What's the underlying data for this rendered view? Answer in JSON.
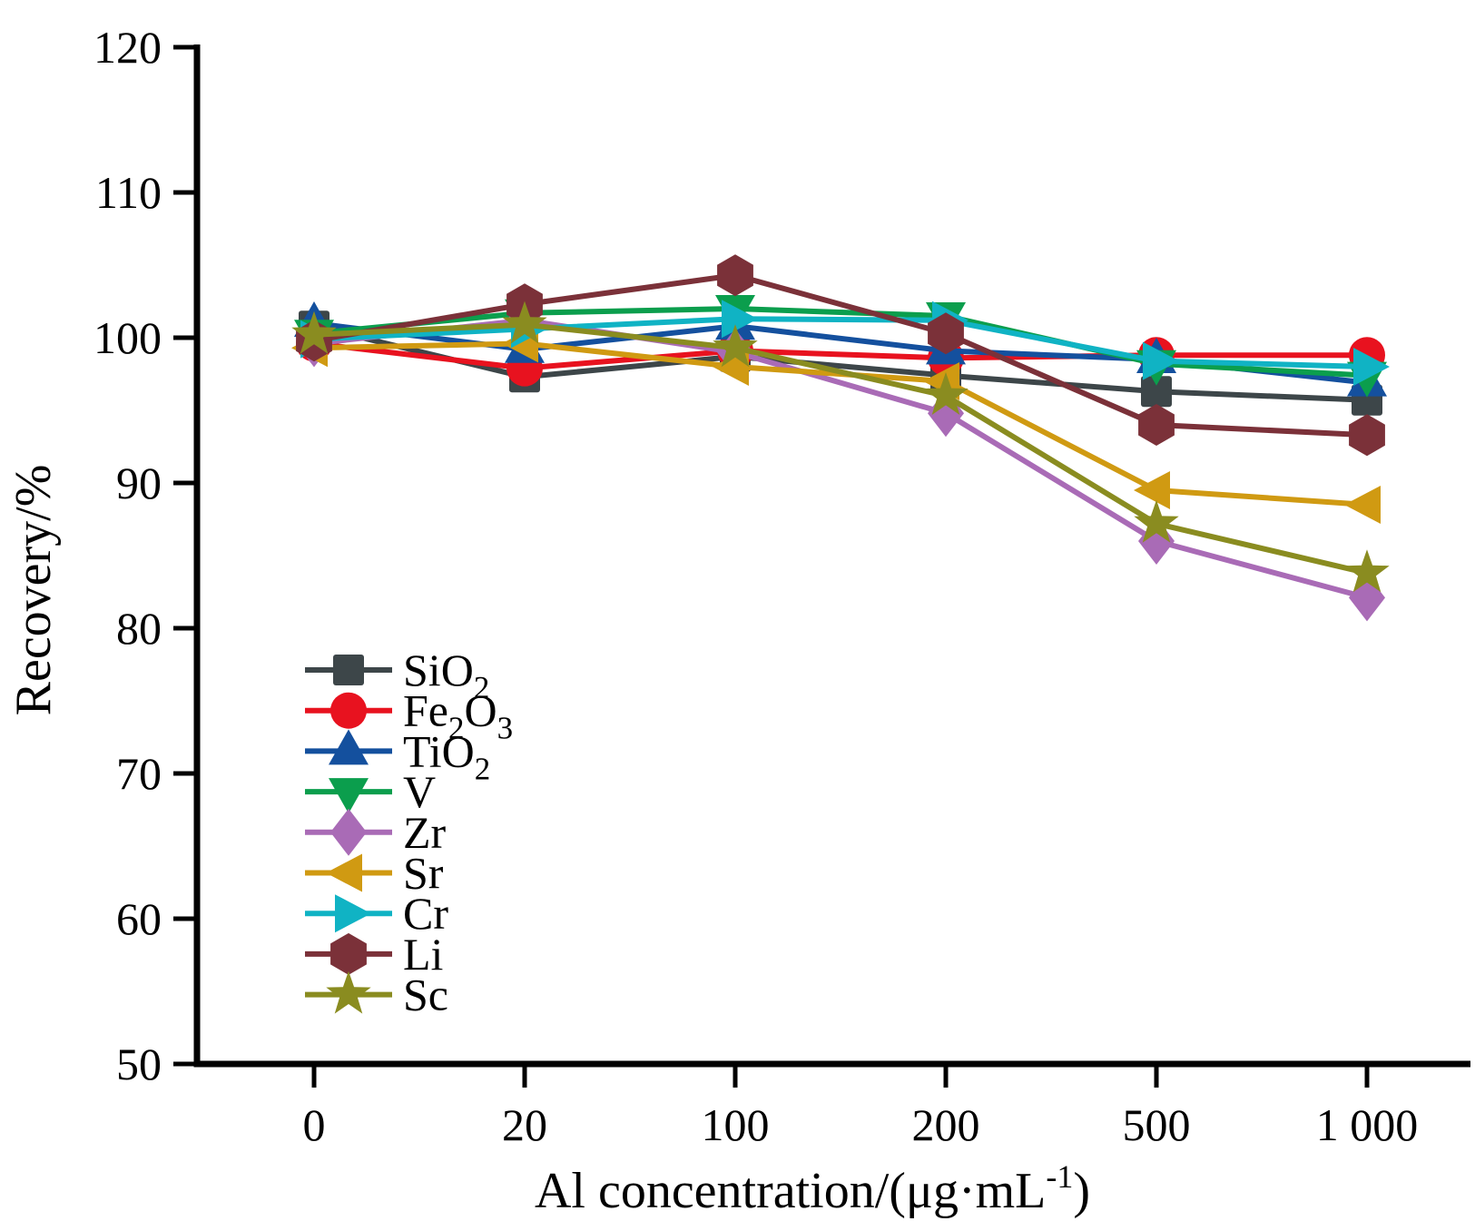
{
  "figure": {
    "background_color": "#ffffff",
    "axis_color": "#000000"
  },
  "chart_data": {
    "type": "line",
    "title": "",
    "xlabel_plain": "Al concentration/(μg·mL-1)",
    "xlabel_segments": [
      {
        "t": "Al concentration/(μg·mL"
      },
      {
        "t": "-1",
        "sup": true
      },
      {
        "t": ")"
      }
    ],
    "ylabel": "Recovery/%",
    "categories": [
      "0",
      "20",
      "100",
      "200",
      "500",
      "1 000"
    ],
    "x_values": [
      0,
      20,
      100,
      200,
      500,
      1000
    ],
    "yticks": [
      50,
      60,
      70,
      80,
      90,
      100,
      110,
      120
    ],
    "ylim": [
      50,
      120
    ],
    "grid": false,
    "legend_position": "inside-lower-left",
    "series": [
      {
        "plain": "SiO2",
        "name_segments": [
          {
            "t": "SiO"
          },
          {
            "t": "2",
            "sub": true
          }
        ],
        "marker": "square",
        "color": "#3d4649",
        "values": [
          100.8,
          97.3,
          98.7,
          97.4,
          96.3,
          95.7
        ]
      },
      {
        "plain": "Fe2O3",
        "name_segments": [
          {
            "t": "Fe"
          },
          {
            "t": "2",
            "sub": true
          },
          {
            "t": "O"
          },
          {
            "t": "3",
            "sub": true
          }
        ],
        "marker": "circle",
        "color": "#e8121f",
        "values": [
          99.6,
          97.9,
          99.1,
          98.6,
          98.8,
          98.8
        ]
      },
      {
        "plain": "TiO2",
        "name_segments": [
          {
            "t": "TiO"
          },
          {
            "t": "2",
            "sub": true
          }
        ],
        "marker": "triangle-up",
        "color": "#14509e",
        "values": [
          101.0,
          99.2,
          100.8,
          99.1,
          98.5,
          96.9
        ]
      },
      {
        "plain": "V",
        "name_segments": [
          {
            "t": "V"
          }
        ],
        "marker": "triangle-down",
        "color": "#0b9e4d",
        "values": [
          100.3,
          101.7,
          102.0,
          101.5,
          98.2,
          97.4
        ]
      },
      {
        "plain": "Zr",
        "name_segments": [
          {
            "t": "Zr"
          }
        ],
        "marker": "diamond",
        "color": "#a96bb6",
        "values": [
          99.6,
          101.2,
          99.0,
          94.8,
          86.0,
          82.1
        ]
      },
      {
        "plain": "Sr",
        "name_segments": [
          {
            "t": "Sr"
          }
        ],
        "marker": "triangle-left",
        "color": "#d09a12",
        "values": [
          99.3,
          99.6,
          98.0,
          97.0,
          89.5,
          88.5
        ]
      },
      {
        "plain": "Cr",
        "name_segments": [
          {
            "t": "Cr"
          }
        ],
        "marker": "triangle-right",
        "color": "#10b3c4",
        "values": [
          99.9,
          100.6,
          101.3,
          101.2,
          98.4,
          98.0
        ]
      },
      {
        "plain": "Li",
        "name_segments": [
          {
            "t": "Li"
          }
        ],
        "marker": "hexagon",
        "color": "#7b3139",
        "values": [
          99.8,
          102.3,
          104.3,
          100.3,
          94.0,
          93.3
        ]
      },
      {
        "plain": "Sc",
        "name_segments": [
          {
            "t": "Sc"
          }
        ],
        "marker": "star",
        "color": "#8a8c20",
        "values": [
          100.2,
          100.9,
          99.3,
          96.0,
          87.2,
          83.8
        ]
      }
    ]
  }
}
